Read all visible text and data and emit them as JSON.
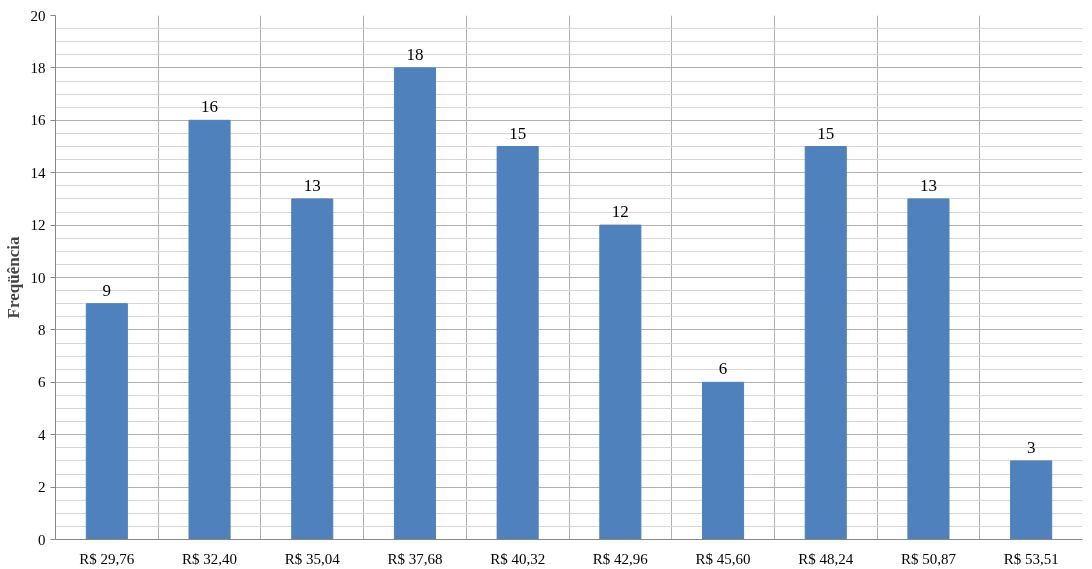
{
  "chart_data": {
    "type": "bar",
    "ylabel": "Freqüência",
    "categories": [
      "R$ 29,76",
      "R$ 32,40",
      "R$ 35,04",
      "R$ 37,68",
      "R$ 40,32",
      "R$ 42,96",
      "R$ 45,60",
      "R$ 48,24",
      "R$ 50,87",
      "R$ 53,51"
    ],
    "values": [
      9,
      16,
      13,
      18,
      15,
      12,
      6,
      15,
      13,
      3
    ],
    "color": "#4f81bd",
    "ylim": [
      0,
      20
    ],
    "yticks": [
      0,
      2,
      4,
      6,
      8,
      10,
      12,
      14,
      16,
      18,
      20
    ],
    "grid": true,
    "data_labels": true
  }
}
